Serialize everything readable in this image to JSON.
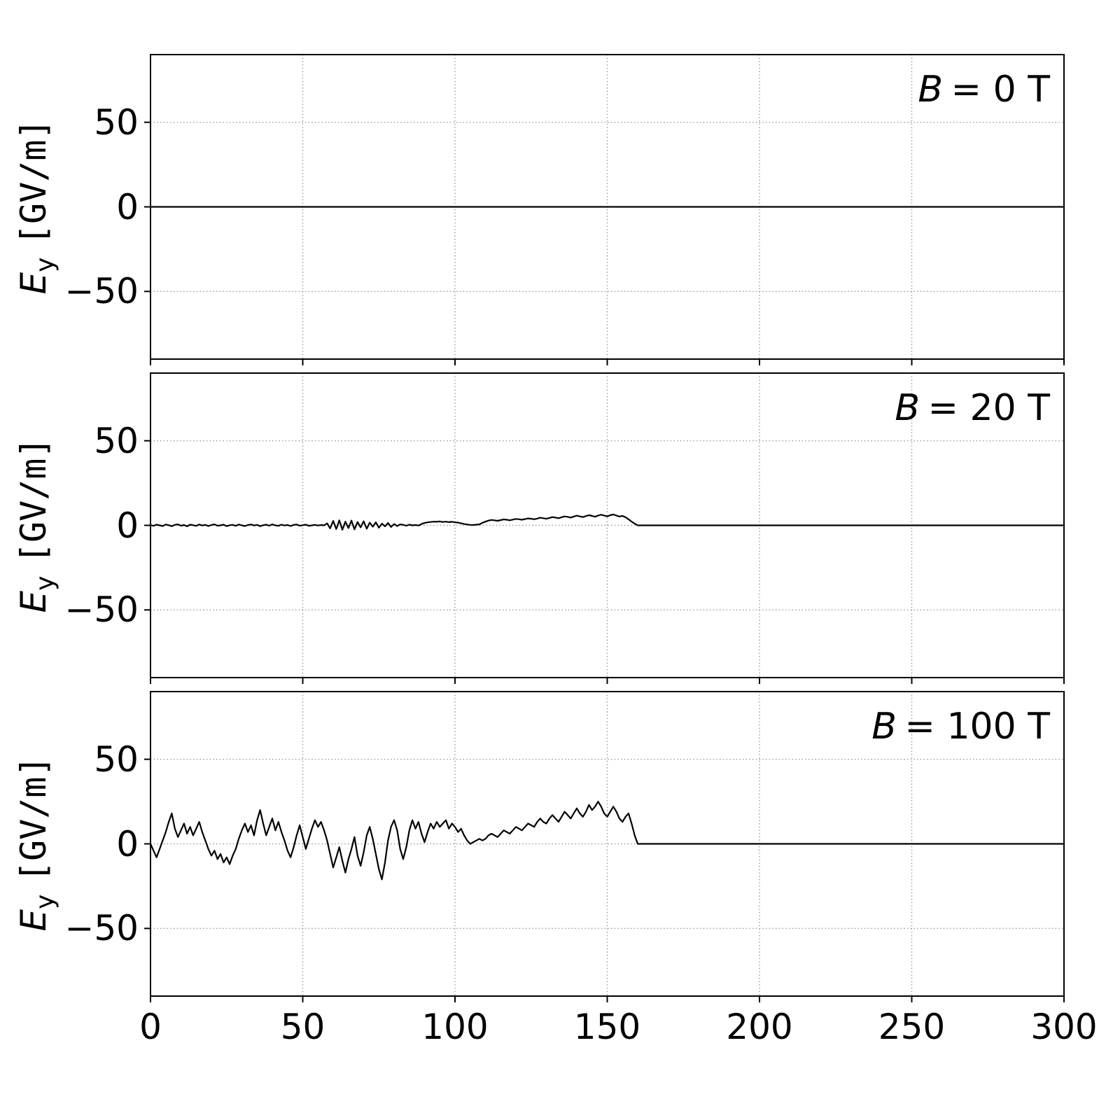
{
  "figure": {
    "background": "#ffffff",
    "line_color": "#000000",
    "grid_color": "#9a9a9a",
    "axis_color": "#000000"
  },
  "ylabel": {
    "var": "E",
    "sub": "y",
    "units": "[GV/m]"
  },
  "yticklabels": [
    "50",
    "0",
    "−50"
  ],
  "xticklabels": [
    "0",
    "50",
    "100",
    "150",
    "200",
    "250",
    "300"
  ],
  "chart_data": [
    {
      "type": "line",
      "annotation_var": "B",
      "annotation_rest": "= 0 T",
      "xlabel": "",
      "ylabel": "Ey [GV/m]",
      "xlim": [
        0,
        300
      ],
      "ylim": [
        -90,
        90
      ],
      "xticks": [
        0,
        50,
        100,
        150,
        200,
        250,
        300
      ],
      "yticks": [
        50,
        0,
        -50
      ],
      "grid": true,
      "series": [
        {
          "name": "Ey",
          "x0": 0,
          "dx": 1,
          "y": [
            0
          ],
          "extend_flat_to": 300
        }
      ]
    },
    {
      "type": "line",
      "annotation_var": "B",
      "annotation_rest": "= 20 T",
      "xlabel": "",
      "ylabel": "Ey [GV/m]",
      "xlim": [
        0,
        300
      ],
      "ylim": [
        -90,
        90
      ],
      "xticks": [
        0,
        50,
        100,
        150,
        200,
        250,
        300
      ],
      "yticks": [
        50,
        0,
        -50
      ],
      "grid": true,
      "series": [
        {
          "name": "Ey",
          "x0": 0,
          "dx": 1,
          "y": [
            0.2,
            -0.3,
            0.4,
            0,
            -0.4,
            0.5,
            0.1,
            -0.5,
            0.3,
            0.6,
            -0.2,
            0.2,
            -0.6,
            0.4,
            0.1,
            -0.3,
            0.5,
            -0.1,
            0.3,
            -0.4,
            0.2,
            0.6,
            -0.2,
            0,
            0.4,
            -0.5,
            0.1,
            0.3,
            -0.3,
            0.5,
            0,
            -0.4,
            0.2,
            0.5,
            -0.1,
            0.3,
            -0.5,
            0.1,
            0.4,
            -0.2,
            0.6,
            0,
            -0.3,
            0.4,
            -0.1,
            0.2,
            -0.4,
            0.3,
            0.5,
            -0.2,
            0.1,
            0.4,
            -0.3,
            0,
            0.3,
            -0.1,
            0.2,
            0,
            1.2,
            -1.8,
            2.6,
            -2.2,
            3,
            -2.6,
            2.2,
            -1.6,
            2.8,
            -2.4,
            2,
            -1.2,
            2.4,
            -2,
            1.6,
            -0.8,
            1.8,
            -1.4,
            1,
            -0.6,
            1.4,
            -1,
            0.8,
            -0.4,
            0.6,
            0.3,
            -0.2,
            0.4,
            0,
            0.2,
            -0.1,
            0.8,
            1.4,
            1.8,
            2,
            2.2,
            2.1,
            2.3,
            2,
            2.2,
            1.9,
            2.1,
            1.8,
            1.6,
            1.2,
            0.8,
            0.5,
            0.3,
            0.2,
            0.4,
            0.6,
            1.5,
            2.2,
            2.8,
            3.2,
            3,
            2.7,
            3.1,
            3.5,
            3.3,
            3,
            3.4,
            3.8,
            3.6,
            3.3,
            3.7,
            4.1,
            3.9,
            3.6,
            4,
            4.5,
            4.2,
            3.9,
            4.4,
            4.9,
            4.6,
            4.2,
            4.8,
            5.3,
            5,
            4.6,
            5.2,
            5.7,
            5.3,
            4.9,
            5.5,
            6,
            5.6,
            5.1,
            5.8,
            6.3,
            5.8,
            5.3,
            6,
            6.4,
            5.8,
            5.2,
            5.6,
            4.8,
            3.6,
            2.2,
            1,
            0
          ],
          "extend_flat_to": 300
        }
      ]
    },
    {
      "type": "line",
      "annotation_var": "B",
      "annotation_rest": "= 100 T",
      "xlabel": "",
      "ylabel": "Ey [GV/m]",
      "xlim": [
        0,
        300
      ],
      "ylim": [
        -90,
        90
      ],
      "xticks": [
        0,
        50,
        100,
        150,
        200,
        250,
        300
      ],
      "yticks": [
        50,
        0,
        -50
      ],
      "grid": true,
      "series": [
        {
          "name": "Ey",
          "x0": 0,
          "dx": 1,
          "y": [
            0,
            -4,
            -8,
            -3,
            2,
            7,
            13,
            18,
            9,
            4,
            8,
            12,
            6,
            10,
            5,
            9,
            13,
            7,
            2,
            -3,
            -7,
            -4,
            -9,
            -6,
            -11,
            -8,
            -12,
            -7,
            -3,
            3,
            8,
            12,
            7,
            11,
            5,
            14,
            20,
            12,
            5,
            10,
            15,
            8,
            13,
            7,
            2,
            -4,
            -8,
            -2,
            5,
            11,
            4,
            -3,
            3,
            9,
            14,
            10,
            13,
            8,
            2,
            -6,
            -14,
            -8,
            -2,
            -10,
            -17,
            -9,
            -3,
            4,
            -7,
            -13,
            -5,
            5,
            10,
            3,
            -6,
            -15,
            -21,
            -11,
            2,
            10,
            14,
            8,
            -3,
            -9,
            -2,
            8,
            14,
            9,
            13,
            6,
            1,
            7,
            12,
            9,
            13,
            10,
            12,
            14,
            9,
            12,
            10,
            7,
            9,
            5,
            2,
            0,
            1,
            2,
            3,
            2,
            3,
            5,
            6,
            5,
            4,
            6,
            8,
            7,
            6,
            8,
            10,
            9,
            8,
            10,
            12,
            11,
            10,
            13,
            15,
            13,
            12,
            15,
            17,
            15,
            13,
            16,
            19,
            17,
            15,
            18,
            21,
            18,
            16,
            19,
            23,
            20,
            22,
            25,
            22,
            18,
            16,
            19,
            22,
            19,
            15,
            13,
            16,
            18,
            12,
            5,
            0
          ],
          "extend_flat_to": 300
        }
      ]
    }
  ]
}
